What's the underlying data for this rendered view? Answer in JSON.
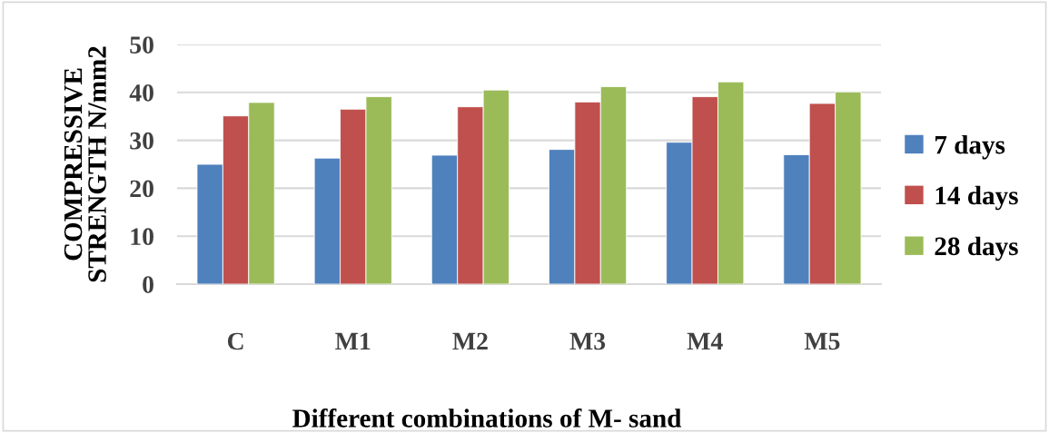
{
  "chart_data": {
    "type": "bar",
    "xlabel": "Different combinations of M- sand",
    "ylabel": "COMPRESSIVE\nSTRENGTH N/mm2",
    "categories": [
      "C",
      "M1",
      "M2",
      "M3",
      "M4",
      "M5"
    ],
    "series": [
      {
        "name": "7 days",
        "color": "#4f81bd",
        "values": [
          25.0,
          26.3,
          26.9,
          28.1,
          29.6,
          27.0
        ]
      },
      {
        "name": "14 days",
        "color": "#c0504d",
        "values": [
          35.1,
          36.5,
          37.0,
          38.0,
          39.1,
          37.7
        ]
      },
      {
        "name": "28 days",
        "color": "#9bbb59",
        "values": [
          37.9,
          39.1,
          40.5,
          41.2,
          42.2,
          40.1
        ]
      }
    ],
    "ylim": [
      0,
      50
    ],
    "yticks": [
      0,
      10,
      20,
      30,
      40,
      50
    ],
    "grid": "y",
    "legend": "right"
  }
}
